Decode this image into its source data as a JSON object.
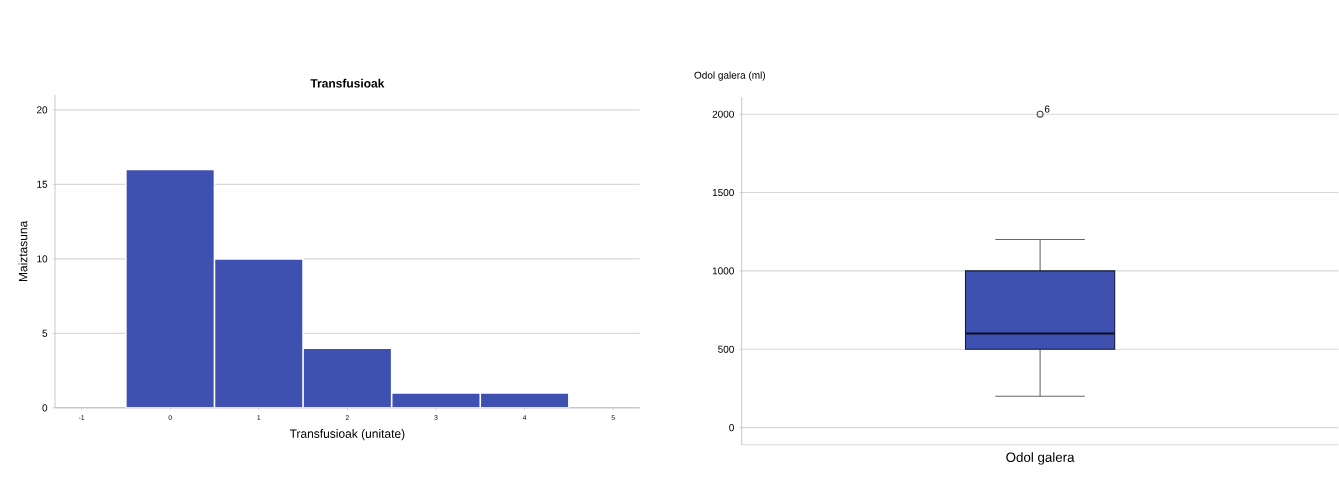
{
  "chart_data": [
    {
      "type": "histogram",
      "title": "Transfusioak",
      "xlabel": "Transfusioak (unitate)",
      "ylabel": "Maiztasuna",
      "bins": [
        -0.5,
        0.5,
        1.5,
        2.5,
        3.5,
        4.5
      ],
      "values": [
        16,
        10,
        4,
        1,
        1
      ],
      "color": "#3f51b0",
      "xlim": [
        -1.3,
        5.3
      ],
      "ylim": [
        0,
        21
      ],
      "xticks": [
        -1,
        0,
        1,
        2,
        3,
        4,
        5
      ],
      "yticks": [
        0,
        5,
        10,
        15,
        20
      ],
      "grid": "y"
    },
    {
      "type": "box",
      "ylabel": "Odol galera (ml)",
      "categories": [
        "Odol galera"
      ],
      "color": "#3f51b0",
      "boxes": [
        {
          "low": 200,
          "q1": 500,
          "median": 600,
          "q3": 1000,
          "high": 1200,
          "outliers": [
            2000
          ]
        }
      ],
      "ylim": [
        -110,
        2110
      ],
      "yticks": [
        0,
        500,
        1000,
        1500,
        2000
      ],
      "grid": "y",
      "annotations": [
        "6"
      ]
    }
  ]
}
